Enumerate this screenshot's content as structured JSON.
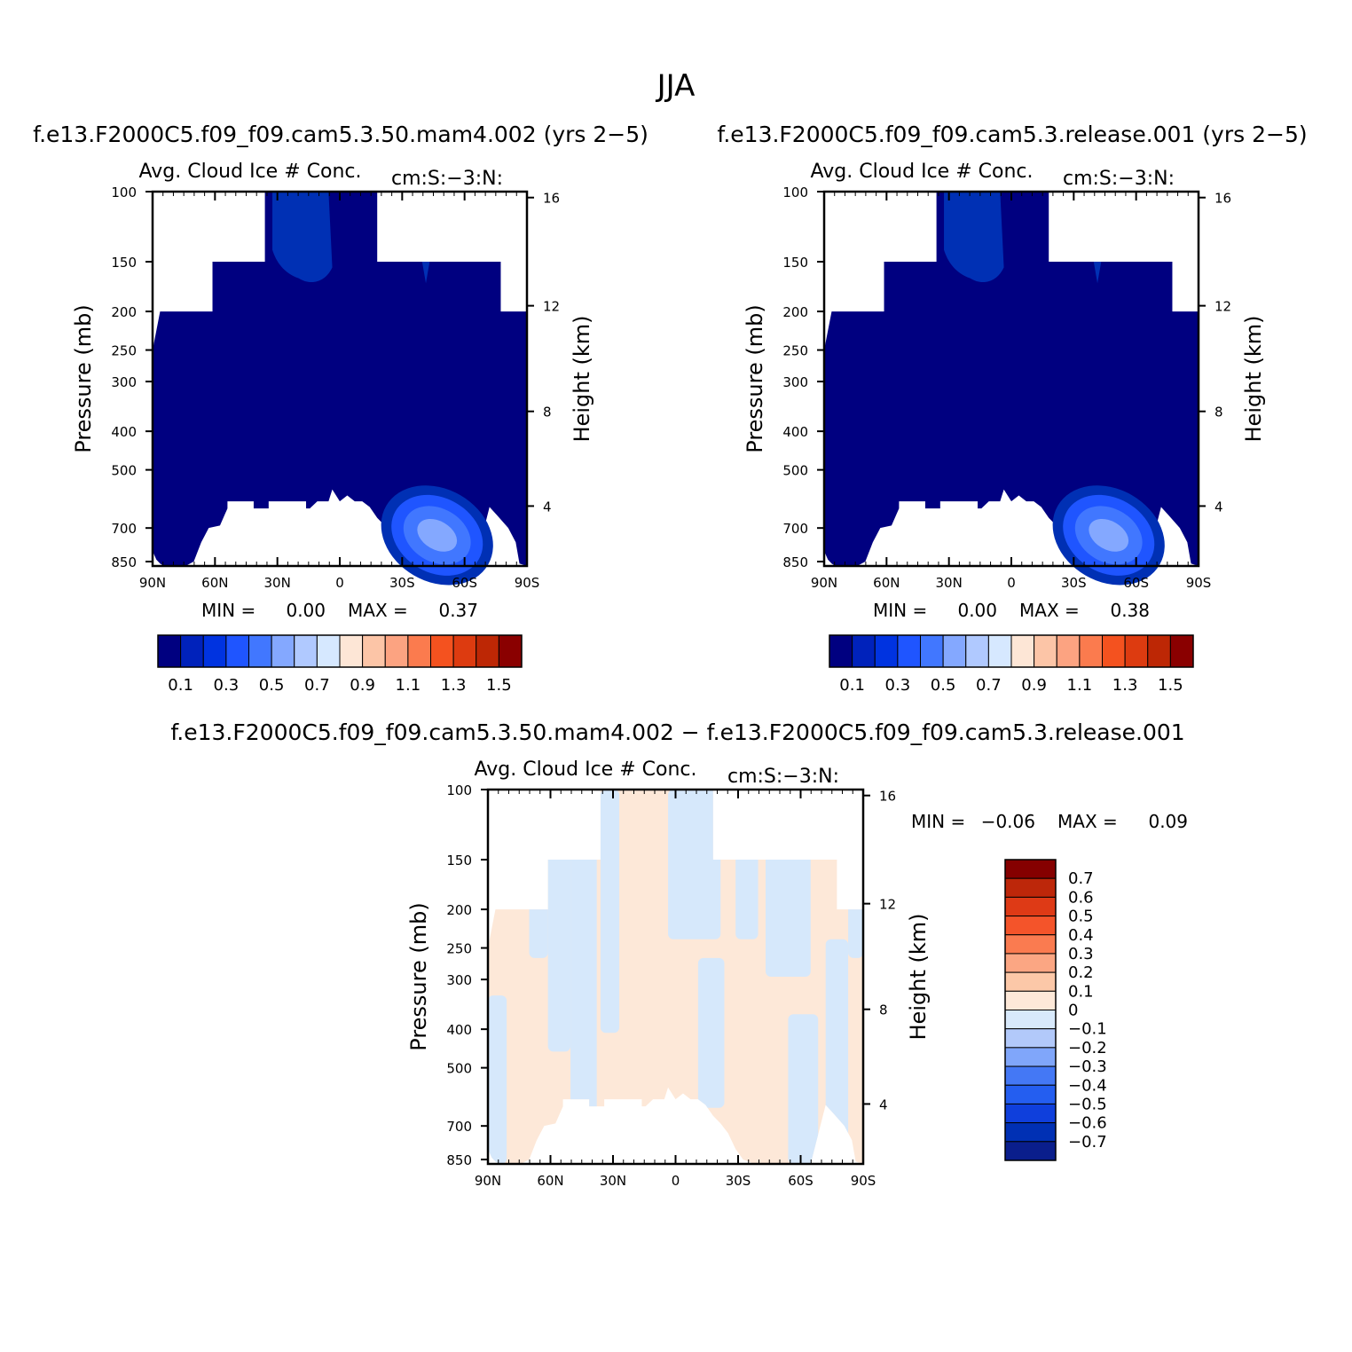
{
  "figure_title": "JJA",
  "colors": {
    "seq": [
      "#000080",
      "#0022bb",
      "#0033e0",
      "#1f55ff",
      "#4177ff",
      "#84a8ff",
      "#b0c9ff",
      "#d6e8ff",
      "#fde6d6",
      "#fcc5a7",
      "#fca381",
      "#fb7b4e",
      "#f4521f",
      "#dd3b10",
      "#bd2705",
      "#8a0000"
    ],
    "diff": [
      "#0a1e8c",
      "#0030b4",
      "#0f3fdc",
      "#245ef0",
      "#4478f5",
      "#80a6fa",
      "#b2c9fa",
      "#d8e9fb",
      "#fde8d8",
      "#fcc8a8",
      "#fba683",
      "#fa7b50",
      "#f4542a",
      "#de3a16",
      "#bd270a",
      "#850000"
    ],
    "fill_base": "#000080",
    "fill_mid": "#0030b4",
    "fill_eddy": [
      "#1f55ff",
      "#4177ff",
      "#84a8ff"
    ],
    "diff_pos": "#fde8d8",
    "diff_neg": "#d6e8fb"
  },
  "chart_data": [
    {
      "type": "heatmap",
      "id": "panel-a",
      "case_title": "f.e13.F2000C5.f09_f09.cam5.3.50.mam4.002 (yrs 2−5)",
      "var_label": "Avg. Cloud Ice # Conc.",
      "units": "cm:S:−3:N:",
      "ylabel": "Pressure (mb)",
      "y2label": "Height (km)",
      "x_ticks": [
        "90N",
        "60N",
        "30N",
        "0",
        "30S",
        "60S",
        "90S"
      ],
      "y_ticks": [
        "100",
        "150",
        "200",
        "250",
        "300",
        "400",
        "500",
        "700",
        "850"
      ],
      "y2_ticks": [
        "16",
        "12",
        "8",
        "4"
      ],
      "min_label": "MIN =",
      "min_value": "0.00",
      "max_label": "MAX =",
      "max_value": "0.37",
      "colorbar_labels": [
        "0.1",
        "0.3",
        "0.5",
        "0.7",
        "0.9",
        "1.1",
        "1.3",
        "1.5"
      ]
    },
    {
      "type": "heatmap",
      "id": "panel-b",
      "case_title": "f.e13.F2000C5.f09_f09.cam5.3.release.001 (yrs 2−5)",
      "var_label": "Avg. Cloud Ice # Conc.",
      "units": "cm:S:−3:N:",
      "ylabel": "Pressure (mb)",
      "y2label": "Height (km)",
      "x_ticks": [
        "90N",
        "60N",
        "30N",
        "0",
        "30S",
        "60S",
        "90S"
      ],
      "y_ticks": [
        "100",
        "150",
        "200",
        "250",
        "300",
        "400",
        "500",
        "700",
        "850"
      ],
      "y2_ticks": [
        "16",
        "12",
        "8",
        "4"
      ],
      "min_label": "MIN =",
      "min_value": "0.00",
      "max_label": "MAX =",
      "max_value": "0.38",
      "colorbar_labels": [
        "0.1",
        "0.3",
        "0.5",
        "0.7",
        "0.9",
        "1.1",
        "1.3",
        "1.5"
      ]
    },
    {
      "type": "heatmap",
      "id": "panel-diff",
      "case_title": "f.e13.F2000C5.f09_f09.cam5.3.50.mam4.002 − f.e13.F2000C5.f09_f09.cam5.3.release.001",
      "var_label": "Avg. Cloud Ice # Conc.",
      "units": "cm:S:−3:N:",
      "ylabel": "Pressure (mb)",
      "y2label": "Height (km)",
      "x_ticks": [
        "90N",
        "60N",
        "30N",
        "0",
        "30S",
        "60S",
        "90S"
      ],
      "y_ticks": [
        "100",
        "150",
        "200",
        "250",
        "300",
        "400",
        "500",
        "700",
        "850"
      ],
      "y2_ticks": [
        "16",
        "12",
        "8",
        "4"
      ],
      "min_label": "MIN =",
      "min_value": "−0.06",
      "max_label": "MAX =",
      "max_value": "0.09",
      "colorbar_labels": [
        "0.7",
        "0.6",
        "0.5",
        "0.4",
        "0.3",
        "0.2",
        "0.1",
        "0",
        "−0.1",
        "−0.2",
        "−0.3",
        "−0.4",
        "−0.5",
        "−0.6",
        "−0.7"
      ]
    }
  ]
}
